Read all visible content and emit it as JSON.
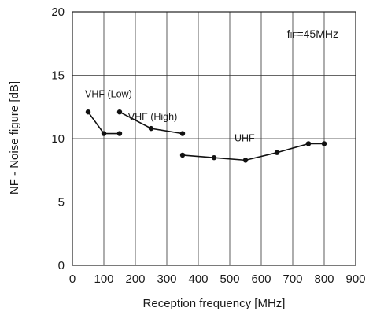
{
  "chart_data": {
    "type": "line",
    "xlabel": "Reception frequency [MHz]",
    "ylabel": "NF - Noise figure [dB]",
    "xlim": [
      0,
      900
    ],
    "ylim": [
      0,
      20
    ],
    "x_ticks": [
      0,
      100,
      200,
      300,
      400,
      500,
      600,
      700,
      800,
      900
    ],
    "y_ticks": [
      0,
      5,
      10,
      15,
      20
    ],
    "grid": true,
    "condition": {
      "main": "f",
      "subscript": "IF",
      "rest": "=45MHz"
    },
    "series": [
      {
        "name": "VHF (Low)",
        "x": [
          50,
          100,
          150
        ],
        "y": [
          12.1,
          10.4,
          10.4
        ]
      },
      {
        "name": "VHF (High)",
        "x": [
          150,
          250,
          350
        ],
        "y": [
          12.1,
          10.8,
          10.4
        ]
      },
      {
        "name": "UHF",
        "x": [
          350,
          450,
          550,
          650,
          750,
          800
        ],
        "y": [
          8.7,
          8.5,
          8.3,
          8.9,
          9.6,
          9.6
        ]
      }
    ]
  }
}
